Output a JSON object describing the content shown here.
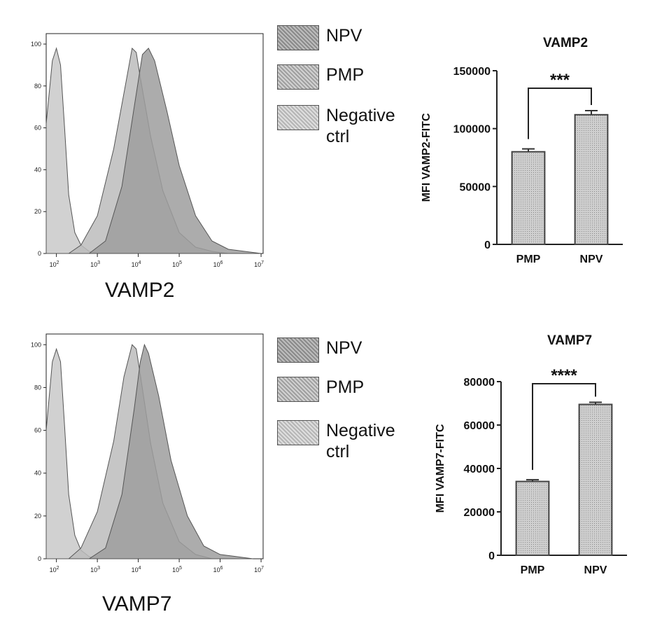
{
  "legend_labels": {
    "npv": "NPV",
    "pmp": "PMP",
    "neg_line1": "Negative",
    "neg_line2": "ctrl"
  },
  "chart_data": [
    {
      "type": "area",
      "xlabel": "VAMP2",
      "xscale": "log",
      "xlim_exp": [
        1.75,
        7.05
      ],
      "xticks": [
        {
          "b": "10",
          "e": "2",
          "v": 2
        },
        {
          "b": "10",
          "e": "3",
          "v": 3
        },
        {
          "b": "10",
          "e": "4",
          "v": 4
        },
        {
          "b": "10",
          "e": "5",
          "v": 5
        },
        {
          "b": "10",
          "e": "6",
          "v": 6
        },
        {
          "b": "10",
          "e": "7",
          "v": 7
        }
      ],
      "yticks": [
        "0",
        "20",
        "40",
        "60",
        "80",
        "100"
      ],
      "ylim": [
        0,
        105
      ],
      "series": [
        {
          "name": "Negative ctrl",
          "color": "#c9c9c9",
          "x": [
            1.75,
            1.9,
            2.0,
            2.1,
            2.2,
            2.3,
            2.45,
            2.6,
            2.8,
            3.0,
            3.2
          ],
          "y": [
            62,
            92,
            98,
            90,
            60,
            28,
            10,
            4,
            1,
            0,
            0
          ]
        },
        {
          "name": "PMP",
          "color": "#bcbcbc",
          "x": [
            2.3,
            2.6,
            3.0,
            3.4,
            3.7,
            3.85,
            3.95,
            4.05,
            4.3,
            4.6,
            5.0,
            5.4,
            5.8,
            6.2
          ],
          "y": [
            0,
            4,
            18,
            50,
            82,
            98,
            96,
            84,
            56,
            30,
            10,
            3,
            1,
            0
          ]
        },
        {
          "name": "NPV",
          "color": "#9e9e9e",
          "x": [
            2.8,
            3.2,
            3.6,
            3.9,
            4.1,
            4.25,
            4.4,
            4.7,
            5.0,
            5.4,
            5.8,
            6.2,
            6.6,
            7.0
          ],
          "y": [
            0,
            6,
            32,
            70,
            95,
            98,
            92,
            68,
            42,
            18,
            6,
            2,
            1,
            0
          ]
        }
      ]
    },
    {
      "type": "bar",
      "title": "VAMP2",
      "categories": [
        "PMP",
        "NPV"
      ],
      "values": [
        80000,
        112000
      ],
      "errors": [
        2500,
        3500
      ],
      "ylabel": "MFI VAMP2-FITC",
      "ylim": [
        0,
        150000
      ],
      "yticks": [
        "0",
        "50000",
        "100000",
        "150000"
      ],
      "significance": "***"
    },
    {
      "type": "area",
      "xlabel": "VAMP7",
      "xscale": "log",
      "xlim_exp": [
        1.75,
        7.05
      ],
      "xticks": [
        {
          "b": "10",
          "e": "2",
          "v": 2
        },
        {
          "b": "10",
          "e": "3",
          "v": 3
        },
        {
          "b": "10",
          "e": "4",
          "v": 4
        },
        {
          "b": "10",
          "e": "5",
          "v": 5
        },
        {
          "b": "10",
          "e": "6",
          "v": 6
        },
        {
          "b": "10",
          "e": "7",
          "v": 7
        }
      ],
      "yticks": [
        "0",
        "20",
        "40",
        "60",
        "80",
        "100"
      ],
      "ylim": [
        0,
        105
      ],
      "series": [
        {
          "name": "Negative ctrl",
          "color": "#c9c9c9",
          "x": [
            1.75,
            1.9,
            2.0,
            2.1,
            2.2,
            2.3,
            2.45,
            2.6,
            2.8,
            3.0,
            3.2
          ],
          "y": [
            60,
            92,
            98,
            92,
            62,
            30,
            11,
            4,
            1,
            0,
            0
          ]
        },
        {
          "name": "PMP",
          "color": "#bcbcbc",
          "x": [
            2.3,
            2.6,
            3.0,
            3.4,
            3.65,
            3.85,
            3.95,
            4.05,
            4.3,
            4.6,
            5.0,
            5.4,
            5.8
          ],
          "y": [
            0,
            5,
            22,
            55,
            85,
            100,
            98,
            86,
            54,
            26,
            8,
            2,
            0
          ]
        },
        {
          "name": "NPV",
          "color": "#9e9e9e",
          "x": [
            2.8,
            3.2,
            3.6,
            3.9,
            4.05,
            4.15,
            4.25,
            4.5,
            4.8,
            5.2,
            5.6,
            6.0,
            6.4,
            6.8
          ],
          "y": [
            0,
            5,
            30,
            70,
            92,
            100,
            96,
            76,
            46,
            20,
            6,
            2,
            1,
            0
          ]
        }
      ]
    },
    {
      "type": "bar",
      "title": "VAMP7",
      "categories": [
        "PMP",
        "NPV"
      ],
      "values": [
        34000,
        69500
      ],
      "errors": [
        800,
        1000
      ],
      "ylabel": "MFI VAMP7-FITC",
      "ylim": [
        0,
        80000
      ],
      "yticks": [
        "0",
        "20000",
        "40000",
        "60000",
        "80000"
      ],
      "significance": "****"
    }
  ]
}
